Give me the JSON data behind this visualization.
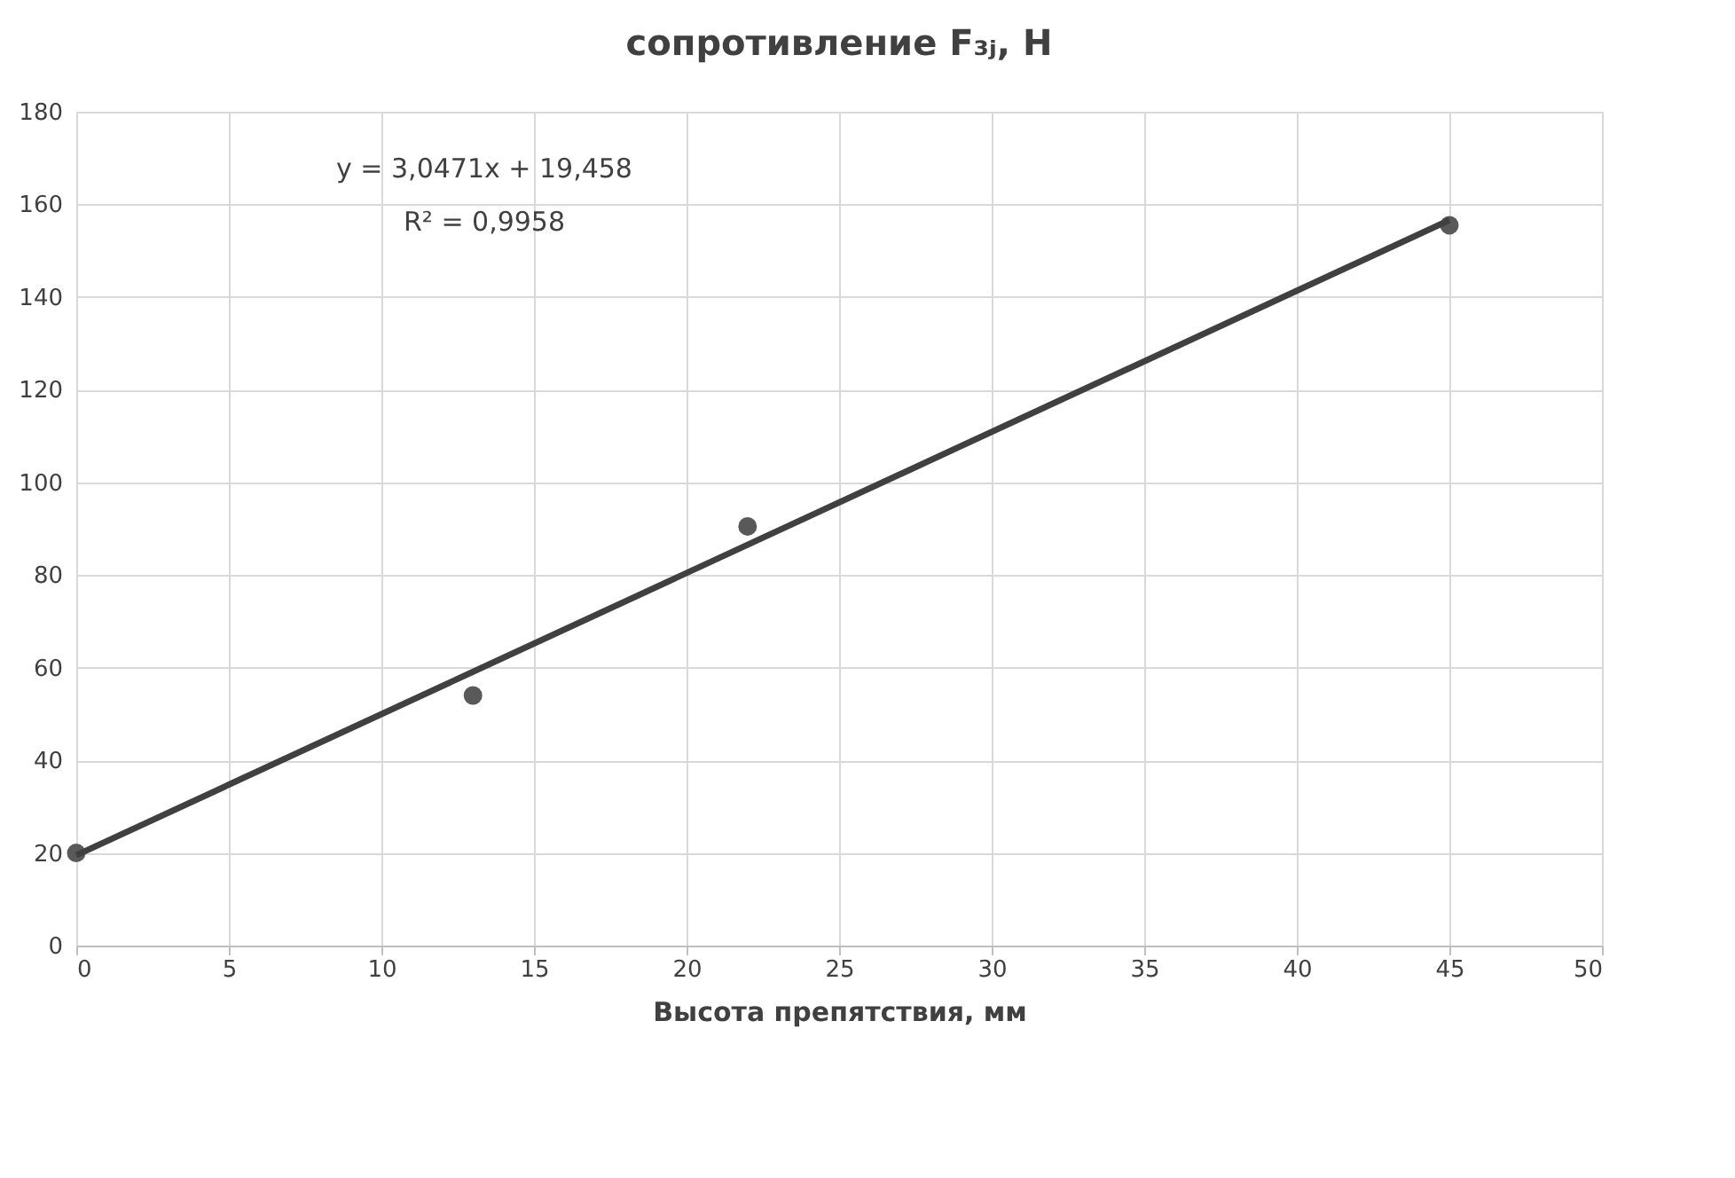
{
  "chart_data": {
    "type": "scatter",
    "title": "сопротивление F₃ⱼ, Н",
    "xlabel": "Высота препятствия, мм",
    "xlim": [
      0,
      50
    ],
    "xticks": [
      0,
      5,
      10,
      15,
      20,
      25,
      30,
      35,
      40,
      45,
      50
    ],
    "ylim": [
      0,
      180
    ],
    "yticks": [
      0,
      20,
      40,
      60,
      80,
      100,
      120,
      140,
      160,
      180
    ],
    "grid": true,
    "marker": "circle",
    "series": [
      {
        "color": "#595959",
        "x": [
          0,
          13,
          22,
          45
        ],
        "values": [
          20,
          54,
          90.5,
          155.5
        ]
      },
      {
        "type": "line",
        "color": "#404040",
        "line_style": "solid",
        "marker": "none",
        "x": [
          0,
          45
        ],
        "values": [
          19.5,
          156.6
        ]
      }
    ],
    "annotations": [
      "y = 3,0471x + 19,458",
      "R² = 0,9958"
    ]
  }
}
